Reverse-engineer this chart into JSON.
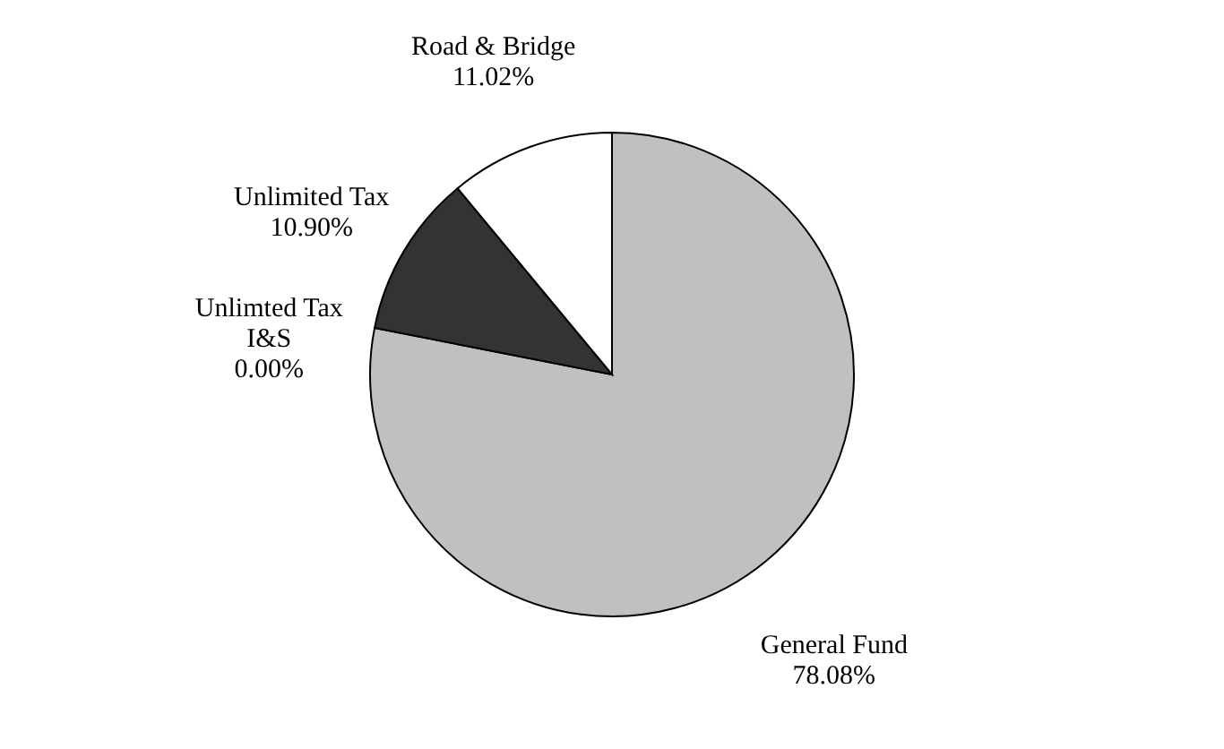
{
  "chart_data": {
    "type": "pie",
    "categories": [
      "General Fund",
      "Unlimted Tax\nI&S",
      "Unlimited Tax",
      "Road & Bridge"
    ],
    "values": [
      78.08,
      0.0,
      10.9,
      11.02
    ],
    "colors": [
      "#c0c0c0",
      "#000000",
      "#333333",
      "#ffffff"
    ],
    "value_labels": [
      "78.08%",
      "0.00%",
      "10.90%",
      "11.02%"
    ]
  }
}
